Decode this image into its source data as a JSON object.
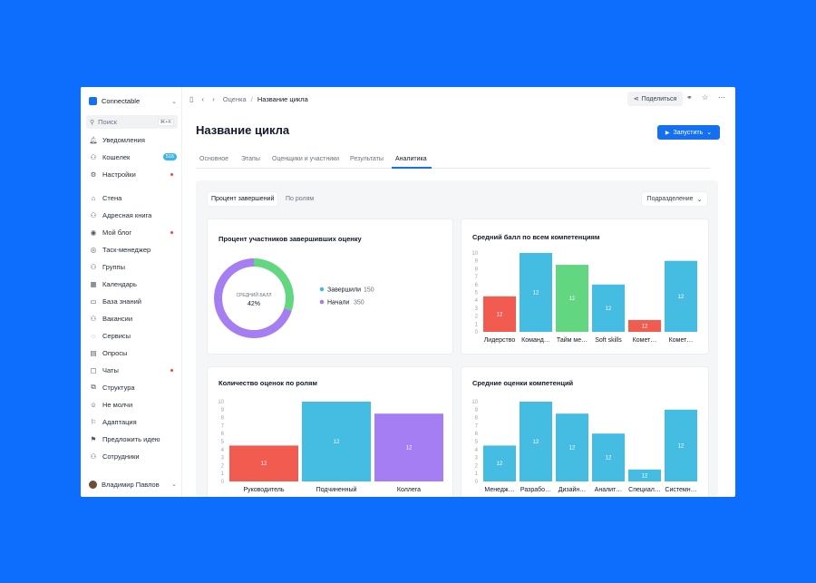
{
  "sidebar": {
    "app_name": "Connectable",
    "search": {
      "label": "Поиск",
      "shortcut": "⌘+K"
    },
    "items": [
      {
        "label": "Уведомления"
      },
      {
        "label": "Кошелек",
        "badge": "516"
      },
      {
        "label": "Настройки"
      },
      {
        "label": "Стена"
      },
      {
        "label": "Адресная книга"
      },
      {
        "label": "Мой блог"
      },
      {
        "label": "Таск-менеджер"
      },
      {
        "label": "Группы"
      },
      {
        "label": "Календарь"
      },
      {
        "label": "База знаний"
      },
      {
        "label": "Вакансии"
      },
      {
        "label": "Сервисы"
      },
      {
        "label": "Опросы"
      },
      {
        "label": "Чаты"
      },
      {
        "label": "Структура"
      },
      {
        "label": "Не молчи"
      },
      {
        "label": "Адаптация"
      },
      {
        "label": "Предложить идею"
      },
      {
        "label": "Сотрудники"
      }
    ],
    "user_name": "Владимир Павлов"
  },
  "topbar": {
    "breadcrumb_parent": "Оценка",
    "breadcrumb_current": "Название цикла",
    "share_label": "Поделиться"
  },
  "main": {
    "title": "Название цикла",
    "run_label": "Запустить",
    "tabs": [
      {
        "label": "Основное"
      },
      {
        "label": "Этапы"
      },
      {
        "label": "Оценщики и участники"
      },
      {
        "label": "Результаты"
      },
      {
        "label": "Аналитика"
      }
    ],
    "segments": [
      "Процент завершений",
      "По ролям"
    ],
    "division_label": "Подразделение"
  },
  "colors": {
    "accent": "#1570ef",
    "blue": "#45bce2",
    "red": "#f25b4f",
    "green": "#63d681",
    "purple": "#a67ef4",
    "background": "#0d6efd"
  },
  "chart_data": [
    {
      "type": "pie",
      "title": "Процент участников завершивших оценку",
      "center_label": "СРЕДНИЙ БАЛЛ",
      "center_value": "42%",
      "slices": [
        {
          "name": "Завершили",
          "value": 150,
          "color": "#63d681"
        },
        {
          "name": "Начали",
          "value": 350,
          "color": "#a67ef4"
        }
      ]
    },
    {
      "type": "bar",
      "title": "Средний балл по всем компетенциям",
      "ylim": [
        0,
        10
      ],
      "yticks": [
        0,
        1,
        2,
        3,
        4,
        5,
        6,
        7,
        8,
        9,
        10
      ],
      "categories": [
        "Лидерство",
        "Команд…",
        "Тайм ме…",
        "Soft skills",
        "Комет…",
        "Комет…"
      ],
      "values": [
        4.5,
        10,
        8.5,
        6,
        1.5,
        9
      ],
      "labels": [
        "12",
        "12",
        "12",
        "12",
        "12",
        "12"
      ],
      "colors": [
        "#f25b4f",
        "#45bce2",
        "#63d681",
        "#45bce2",
        "#f25b4f",
        "#45bce2"
      ]
    },
    {
      "type": "bar",
      "title": "Количество оценок по ролям",
      "ylim": [
        0,
        10
      ],
      "yticks": [
        0,
        1,
        2,
        3,
        4,
        5,
        6,
        7,
        8,
        9,
        10
      ],
      "categories": [
        "Руководитель",
        "Подчиненный",
        "Коллега"
      ],
      "values": [
        4.5,
        10,
        8.5
      ],
      "labels": [
        "12",
        "12",
        "12"
      ],
      "colors": [
        "#f25b4f",
        "#45bce2",
        "#a67ef4"
      ]
    },
    {
      "type": "bar",
      "title": "Средние оценки компетенций",
      "ylim": [
        0,
        10
      ],
      "yticks": [
        0,
        1,
        2,
        3,
        4,
        5,
        6,
        7,
        8,
        9,
        10
      ],
      "categories": [
        "Менедж…",
        "Разрабо…",
        "Дизайн…",
        "Аналит…",
        "Специал…",
        "Системн…"
      ],
      "values": [
        4.5,
        10,
        8.5,
        6,
        1.5,
        9
      ],
      "labels": [
        "12",
        "12",
        "12",
        "12",
        "12",
        "12"
      ],
      "colors": [
        "#45bce2",
        "#45bce2",
        "#45bce2",
        "#45bce2",
        "#45bce2",
        "#45bce2"
      ]
    }
  ]
}
